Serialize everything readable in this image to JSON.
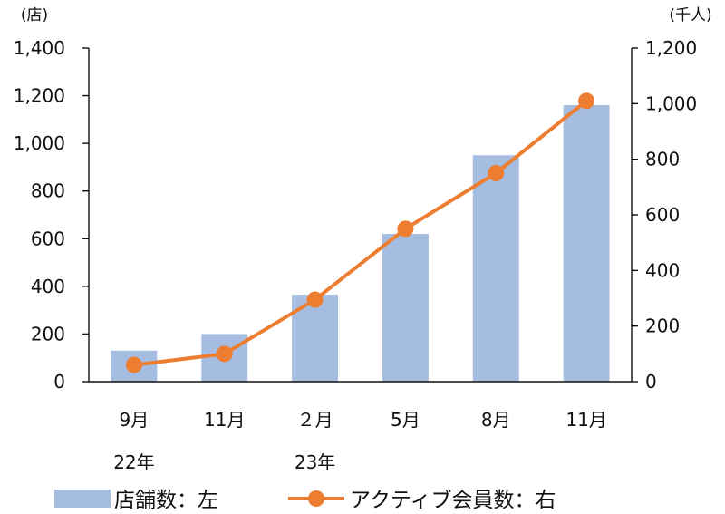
{
  "chart_data": {
    "type": "bar+line",
    "categories": [
      "9月",
      "11月",
      "２月",
      "5月",
      "8月",
      "11月"
    ],
    "year_labels": [
      {
        "category_index": 0,
        "label": "22年"
      },
      {
        "category_index": 2,
        "label": "23年"
      }
    ],
    "left_axis": {
      "unit": "(店)",
      "ylim": [
        0,
        1400
      ],
      "ticks": [
        0,
        200,
        400,
        600,
        800,
        1000,
        1200,
        1400
      ],
      "tick_labels": [
        "0",
        "200",
        "400",
        "600",
        "800",
        "1,000",
        "1,200",
        "1,400"
      ]
    },
    "right_axis": {
      "unit": "(千人)",
      "ylim": [
        0,
        1200
      ],
      "ticks": [
        0,
        200,
        400,
        600,
        800,
        1000,
        1200
      ],
      "tick_labels": [
        "0",
        "200",
        "400",
        "600",
        "800",
        "1,000",
        "1,200"
      ]
    },
    "series": [
      {
        "name": "店舗数：左",
        "type": "bar",
        "axis": "left",
        "color": "#a5bde0",
        "values": [
          130,
          200,
          365,
          620,
          950,
          1160
        ]
      },
      {
        "name": "アクティブ会員数：右",
        "type": "line",
        "axis": "right",
        "color": "#ed7d31",
        "values": [
          60,
          100,
          295,
          550,
          750,
          1010
        ]
      }
    ],
    "grid": false,
    "legend_position": "bottom"
  }
}
